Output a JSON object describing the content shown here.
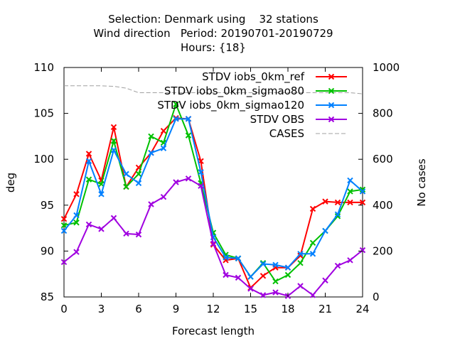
{
  "chart_data": {
    "type": "line",
    "title": [
      "Selection: Denmark using    32 stations",
      "Wind direction   Period: 20190701-20190729",
      "Hours: {18}"
    ],
    "xlabel": "Forecast length",
    "ylabel": "deg",
    "y2label": "No cases",
    "xlim": [
      0,
      24
    ],
    "ylim": [
      85,
      110
    ],
    "y2lim": [
      0,
      1000
    ],
    "x_ticks": [
      "0",
      "3",
      "6",
      "9",
      "12",
      "15",
      "18",
      "21",
      "24"
    ],
    "y_ticks": [
      "85",
      "90",
      "95",
      "100",
      "105",
      "110"
    ],
    "y2_ticks": [
      "0",
      "200",
      "400",
      "600",
      "800",
      "1000"
    ],
    "legend_position": "top-right",
    "x": [
      0,
      1,
      2,
      3,
      4,
      5,
      6,
      7,
      8,
      9,
      10,
      11,
      12,
      13,
      14,
      15,
      16,
      17,
      18,
      19,
      20,
      21,
      22,
      23,
      24
    ],
    "series": [
      {
        "name": "STDV iobs_0km_ref",
        "color": "#ff0000",
        "marker": "x",
        "values": [
          93.5,
          96.2,
          100.6,
          97.7,
          103.5,
          97.0,
          99.1,
          100.7,
          103.1,
          104.5,
          104.4,
          99.8,
          90.7,
          89.0,
          89.2,
          86.0,
          87.3,
          88.2,
          88.2,
          89.5,
          94.6,
          95.4,
          95.3,
          95.3,
          95.3
        ]
      },
      {
        "name": "STDV iobs_0km_sigmao80",
        "color": "#00c000",
        "marker": "x",
        "values": [
          92.8,
          93.1,
          97.8,
          97.3,
          102.0,
          97.0,
          98.4,
          102.5,
          101.8,
          106.0,
          102.6,
          97.4,
          92.0,
          89.6,
          89.2,
          87.2,
          88.7,
          86.7,
          87.4,
          88.7,
          90.9,
          92.2,
          93.8,
          96.5,
          96.7
        ]
      },
      {
        "name": "STDV iobs_0km_sigmao120",
        "color": "#0080ff",
        "marker": "x",
        "values": [
          92.2,
          93.9,
          99.8,
          96.2,
          101.0,
          98.4,
          97.4,
          100.7,
          101.2,
          104.4,
          104.4,
          98.6,
          91.5,
          89.3,
          89.2,
          87.2,
          88.6,
          88.5,
          88.2,
          89.7,
          89.7,
          92.2,
          94.0,
          97.7,
          96.5
        ]
      },
      {
        "name": "STDV OBS",
        "color": "#a000e0",
        "marker": "x",
        "values": [
          88.8,
          89.9,
          92.9,
          92.4,
          93.6,
          91.9,
          91.8,
          95.1,
          95.9,
          97.5,
          97.9,
          97.1,
          90.8,
          87.4,
          87.1,
          85.9,
          85.2,
          85.5,
          85.1,
          86.2,
          85.2,
          86.8,
          88.4,
          89.0,
          90.1
        ]
      },
      {
        "name": "CASES",
        "color": "#a0a0a0",
        "dashed": true,
        "axis": "y2",
        "values": [
          920,
          920,
          920,
          920,
          918,
          910,
          890,
          890,
          890,
          890,
          890,
          890,
          890,
          890,
          890,
          890,
          890,
          890,
          890,
          890,
          890,
          890,
          890,
          890,
          885
        ]
      }
    ]
  }
}
